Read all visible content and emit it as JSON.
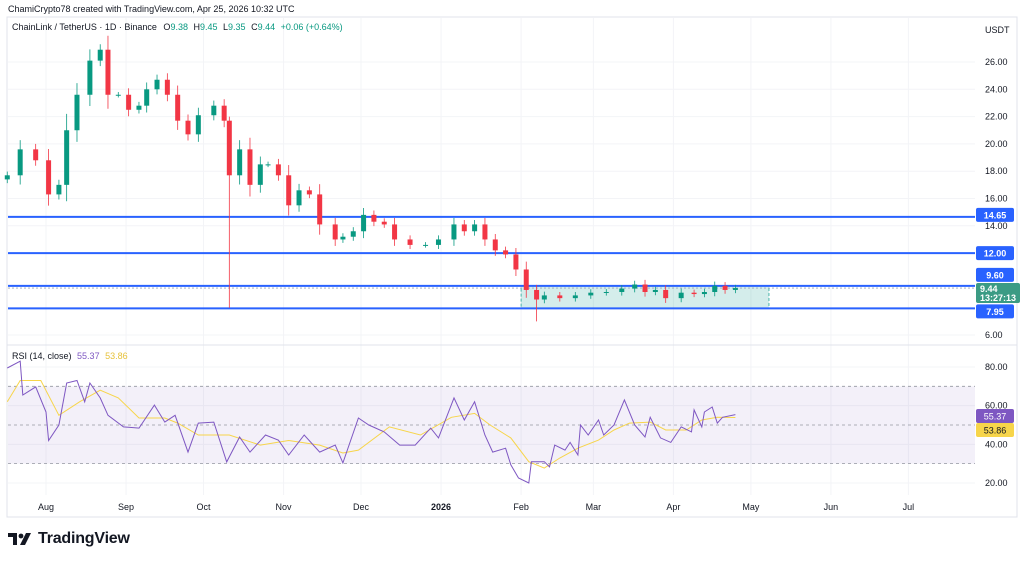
{
  "header": {
    "attribution": "ChamiCrypto78 created with TradingView.com, Apr 25, 2026 10:32 UTC",
    "symbol": "ChainLink / TetherUS · 1D · Binance",
    "o_label": "O",
    "o": "9.38",
    "h_label": "H",
    "h": "9.45",
    "l_label": "L",
    "l": "9.35",
    "c_label": "C",
    "c": "9.44",
    "change": "+0.06 (+0.64%)"
  },
  "price_axis": {
    "currency": "USDT",
    "ticks": [
      "26.00",
      "24.00",
      "22.00",
      "20.00",
      "18.00",
      "16.00",
      "14.00",
      "6.00"
    ],
    "levels": [
      {
        "value": 14.65,
        "label": "14.65"
      },
      {
        "value": 12.0,
        "label": "12.00"
      },
      {
        "value": 9.6,
        "label": "9.60"
      },
      {
        "value": 7.95,
        "label": "7.95"
      }
    ],
    "current_price": {
      "value": 9.44,
      "label": "9.44",
      "countdown": "13:27:13"
    }
  },
  "range_box": {
    "top": 9.6,
    "bottom": 7.95,
    "from": "2026-02-01",
    "to": "2026-05-08"
  },
  "time_axis": [
    {
      "label": "Aug",
      "date": "2025-08-01",
      "bold": false
    },
    {
      "label": "Sep",
      "date": "2025-09-01",
      "bold": false
    },
    {
      "label": "Oct",
      "date": "2025-10-01",
      "bold": false
    },
    {
      "label": "Nov",
      "date": "2025-11-01",
      "bold": false
    },
    {
      "label": "Dec",
      "date": "2025-12-01",
      "bold": false
    },
    {
      "label": "2026",
      "date": "2026-01-01",
      "bold": true
    },
    {
      "label": "Feb",
      "date": "2026-02-01",
      "bold": false
    },
    {
      "label": "Mar",
      "date": "2026-03-01",
      "bold": false
    },
    {
      "label": "Apr",
      "date": "2026-04-01",
      "bold": false
    },
    {
      "label": "May",
      "date": "2026-05-01",
      "bold": false
    },
    {
      "label": "Jun",
      "date": "2026-06-01",
      "bold": false
    },
    {
      "label": "Jul",
      "date": "2026-07-01",
      "bold": false
    }
  ],
  "colors": {
    "up": "#089981",
    "down": "#f23645",
    "level": "#2962ff",
    "rsi": "#7e57c2",
    "rsi_ma": "#f7d54a",
    "box": "#26a69a"
  },
  "rsi": {
    "title": "RSI (14, close)",
    "value": "55.37",
    "ma_value": "53.86",
    "ticks": [
      "80.00",
      "60.00",
      "40.00",
      "20.00"
    ],
    "bands": [
      70,
      50,
      30
    ]
  },
  "chart_data": [
    {
      "type": "candlestick",
      "title": "ChainLink / TetherUS · 1D · Binance",
      "ylim": [
        6,
        27
      ],
      "candles": [
        {
          "d": "2025-07-17",
          "c": 17.7
        },
        {
          "d": "2025-07-22",
          "c": 19.6
        },
        {
          "d": "2025-07-28",
          "c": 18.8
        },
        {
          "d": "2025-08-02",
          "c": 16.3
        },
        {
          "d": "2025-08-06",
          "c": 17.0
        },
        {
          "d": "2025-08-09",
          "c": 21.0
        },
        {
          "d": "2025-08-13",
          "c": 23.6
        },
        {
          "d": "2025-08-18",
          "c": 26.1
        },
        {
          "d": "2025-08-22",
          "c": 26.9
        },
        {
          "d": "2025-08-25",
          "c": 23.6
        },
        {
          "d": "2025-08-29",
          "c": 23.6
        },
        {
          "d": "2025-09-02",
          "c": 22.5
        },
        {
          "d": "2025-09-06",
          "c": 22.8
        },
        {
          "d": "2025-09-09",
          "c": 24.0
        },
        {
          "d": "2025-09-13",
          "c": 24.7
        },
        {
          "d": "2025-09-17",
          "c": 23.6
        },
        {
          "d": "2025-09-21",
          "c": 21.7
        },
        {
          "d": "2025-09-25",
          "c": 20.7
        },
        {
          "d": "2025-09-29",
          "c": 22.1
        },
        {
          "d": "2025-10-05",
          "c": 22.8
        },
        {
          "d": "2025-10-09",
          "c": 21.7
        },
        {
          "d": "2025-10-11",
          "c": 17.7,
          "h": 22.0,
          "l": 8.0
        },
        {
          "d": "2025-10-15",
          "c": 19.6
        },
        {
          "d": "2025-10-19",
          "c": 17.0
        },
        {
          "d": "2025-10-23",
          "c": 18.5
        },
        {
          "d": "2025-10-26",
          "c": 18.5
        },
        {
          "d": "2025-10-30",
          "c": 17.7
        },
        {
          "d": "2025-11-03",
          "c": 15.5
        },
        {
          "d": "2025-11-07",
          "c": 16.6
        },
        {
          "d": "2025-11-11",
          "c": 16.3
        },
        {
          "d": "2025-11-15",
          "c": 14.1
        },
        {
          "d": "2025-11-21",
          "c": 13.0
        },
        {
          "d": "2025-11-24",
          "c": 13.2
        },
        {
          "d": "2025-11-28",
          "c": 13.6
        },
        {
          "d": "2025-12-02",
          "c": 14.8
        },
        {
          "d": "2025-12-06",
          "c": 14.3
        },
        {
          "d": "2025-12-10",
          "c": 14.1
        },
        {
          "d": "2025-12-14",
          "c": 13.0
        },
        {
          "d": "2025-12-20",
          "c": 12.6
        },
        {
          "d": "2025-12-26",
          "c": 12.6
        },
        {
          "d": "2025-12-31",
          "c": 13.0
        },
        {
          "d": "2026-01-06",
          "c": 14.1
        },
        {
          "d": "2026-01-10",
          "c": 13.6
        },
        {
          "d": "2026-01-14",
          "c": 14.1
        },
        {
          "d": "2026-01-18",
          "c": 13.0
        },
        {
          "d": "2026-01-22",
          "c": 12.2
        },
        {
          "d": "2026-01-26",
          "c": 11.9
        },
        {
          "d": "2026-01-30",
          "c": 10.8
        },
        {
          "d": "2026-02-03",
          "c": 9.3
        },
        {
          "d": "2026-02-07",
          "c": 8.6,
          "l": 7.0
        },
        {
          "d": "2026-02-10",
          "c": 8.9
        },
        {
          "d": "2026-02-16",
          "c": 8.7
        },
        {
          "d": "2026-02-22",
          "c": 8.9
        },
        {
          "d": "2026-02-28",
          "c": 9.1
        },
        {
          "d": "2026-03-06",
          "c": 9.15
        },
        {
          "d": "2026-03-12",
          "c": 9.4
        },
        {
          "d": "2026-03-17",
          "c": 9.7
        },
        {
          "d": "2026-03-21",
          "c": 9.15
        },
        {
          "d": "2026-03-25",
          "c": 9.3
        },
        {
          "d": "2026-03-29",
          "c": 8.7
        },
        {
          "d": "2026-04-04",
          "c": 9.1
        },
        {
          "d": "2026-04-09",
          "c": 9.0
        },
        {
          "d": "2026-04-13",
          "c": 9.15
        },
        {
          "d": "2026-04-17",
          "c": 9.6
        },
        {
          "d": "2026-04-21",
          "c": 9.3
        },
        {
          "d": "2026-04-25",
          "c": 9.44
        }
      ]
    },
    {
      "type": "line",
      "title": "RSI (14, close)",
      "ylim": [
        15,
        88
      ],
      "series": [
        {
          "name": "RSI",
          "points": [
            [
              "2025-07-17",
              79.5
            ],
            [
              "2025-07-22",
              83
            ],
            [
              "2025-07-23",
              65.5
            ],
            [
              "2025-07-28",
              69.7
            ],
            [
              "2025-08-01",
              56.7
            ],
            [
              "2025-08-02",
              42
            ],
            [
              "2025-08-06",
              50
            ],
            [
              "2025-08-09",
              71.7
            ],
            [
              "2025-08-13",
              73
            ],
            [
              "2025-08-16",
              62
            ],
            [
              "2025-08-18",
              71.7
            ],
            [
              "2025-08-22",
              64
            ],
            [
              "2025-08-25",
              55
            ],
            [
              "2025-08-31",
              49
            ],
            [
              "2025-09-06",
              48.4
            ],
            [
              "2025-09-12",
              60.3
            ],
            [
              "2025-09-16",
              51.5
            ],
            [
              "2025-09-20",
              55
            ],
            [
              "2025-09-25",
              36
            ],
            [
              "2025-09-29",
              51
            ],
            [
              "2025-10-05",
              51.5
            ],
            [
              "2025-10-10",
              30.9
            ],
            [
              "2025-10-15",
              43.8
            ],
            [
              "2025-10-19",
              36
            ],
            [
              "2025-10-25",
              44.8
            ],
            [
              "2025-10-30",
              42.2
            ],
            [
              "2025-11-03",
              34.5
            ],
            [
              "2025-11-09",
              44.8
            ],
            [
              "2025-11-15",
              36
            ],
            [
              "2025-11-21",
              39.6
            ],
            [
              "2025-11-24",
              30.4
            ],
            [
              "2025-11-30",
              53.6
            ],
            [
              "2025-12-04",
              50
            ],
            [
              "2025-12-10",
              46.4
            ],
            [
              "2025-12-16",
              39.6
            ],
            [
              "2025-12-22",
              39.6
            ],
            [
              "2025-12-28",
              48.4
            ],
            [
              "2025-12-31",
              43.3
            ],
            [
              "2026-01-06",
              64
            ],
            [
              "2026-01-10",
              52.6
            ],
            [
              "2026-01-14",
              62
            ],
            [
              "2026-01-18",
              44.8
            ],
            [
              "2026-01-21",
              36
            ],
            [
              "2026-01-26",
              38
            ],
            [
              "2026-01-28",
              29.4
            ],
            [
              "2026-01-31",
              22.6
            ],
            [
              "2026-02-04",
              20
            ],
            [
              "2026-02-05",
              31
            ],
            [
              "2026-02-10",
              31
            ],
            [
              "2026-02-12",
              28.3
            ],
            [
              "2026-02-14",
              39.6
            ],
            [
              "2026-02-18",
              37
            ],
            [
              "2026-02-20",
              41
            ],
            [
              "2026-02-23",
              34.5
            ],
            [
              "2026-02-24",
              50
            ],
            [
              "2026-02-27",
              44.8
            ],
            [
              "2026-03-03",
              52.6
            ],
            [
              "2026-03-05",
              44.8
            ],
            [
              "2026-03-09",
              50
            ],
            [
              "2026-03-13",
              63
            ],
            [
              "2026-03-17",
              50
            ],
            [
              "2026-03-21",
              43.8
            ],
            [
              "2026-03-23",
              54
            ],
            [
              "2026-03-27",
              43.3
            ],
            [
              "2026-03-31",
              41
            ],
            [
              "2026-04-04",
              49
            ],
            [
              "2026-04-08",
              46.4
            ],
            [
              "2026-04-09",
              57.8
            ],
            [
              "2026-04-12",
              49
            ],
            [
              "2026-04-13",
              56.7
            ],
            [
              "2026-04-16",
              59.3
            ],
            [
              "2026-04-18",
              51
            ],
            [
              "2026-04-20",
              54
            ],
            [
              "2026-04-25",
              55.37
            ]
          ]
        },
        {
          "name": "RSI-based MA",
          "points": [
            [
              "2025-07-17",
              62
            ],
            [
              "2025-07-22",
              73
            ],
            [
              "2025-07-30",
              73
            ],
            [
              "2025-08-06",
              55
            ],
            [
              "2025-08-14",
              62
            ],
            [
              "2025-08-22",
              68
            ],
            [
              "2025-08-29",
              64
            ],
            [
              "2025-09-06",
              53.6
            ],
            [
              "2025-09-16",
              53.6
            ],
            [
              "2025-09-21",
              51
            ],
            [
              "2025-09-29",
              44.8
            ],
            [
              "2025-10-11",
              44.8
            ],
            [
              "2025-10-23",
              39.6
            ],
            [
              "2025-11-03",
              42
            ],
            [
              "2025-11-15",
              39.6
            ],
            [
              "2025-11-24",
              35.5
            ],
            [
              "2025-11-30",
              37
            ],
            [
              "2025-12-12",
              49
            ],
            [
              "2025-12-24",
              44.8
            ],
            [
              "2026-01-05",
              54
            ],
            [
              "2026-01-14",
              56
            ],
            [
              "2026-01-20",
              50
            ],
            [
              "2026-01-28",
              43.3
            ],
            [
              "2026-02-04",
              31
            ],
            [
              "2026-02-10",
              27.7
            ],
            [
              "2026-02-16",
              32.9
            ],
            [
              "2026-02-23",
              38
            ],
            [
              "2026-03-03",
              42.2
            ],
            [
              "2026-03-09",
              47.4
            ],
            [
              "2026-03-15",
              51
            ],
            [
              "2026-03-23",
              51.5
            ],
            [
              "2026-03-29",
              47.4
            ],
            [
              "2026-04-06",
              47.4
            ],
            [
              "2026-04-12",
              52.6
            ],
            [
              "2026-04-18",
              54
            ],
            [
              "2026-04-25",
              53.86
            ]
          ]
        }
      ]
    }
  ],
  "brand": {
    "name": "TradingView"
  }
}
